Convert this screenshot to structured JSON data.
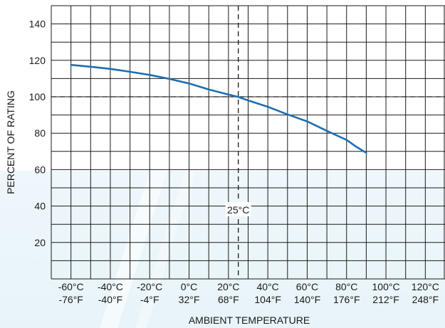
{
  "chart_data": {
    "type": "line",
    "xlabel": "AMBIENT TEMPERATURE",
    "ylabel": "PERCENT OF RATING",
    "xlim": [
      -60,
      120
    ],
    "ylim": [
      0,
      150
    ],
    "x_ticks": [
      {
        "c": -60,
        "c_label": "-60°C",
        "f_label": "-76°F"
      },
      {
        "c": -40,
        "c_label": "-40°C",
        "f_label": "-40°F"
      },
      {
        "c": -20,
        "c_label": "-20°C",
        "f_label": "-4°F"
      },
      {
        "c": 0,
        "c_label": "0°C",
        "f_label": "32°F"
      },
      {
        "c": 20,
        "c_label": "20°C",
        "f_label": "68°F"
      },
      {
        "c": 40,
        "c_label": "40°C",
        "f_label": "104°F"
      },
      {
        "c": 60,
        "c_label": "60°C",
        "f_label": "140°F"
      },
      {
        "c": 80,
        "c_label": "80°C",
        "f_label": "176°F"
      },
      {
        "c": 100,
        "c_label": "100°C",
        "f_label": "212°F"
      },
      {
        "c": 120,
        "c_label": "120°C",
        "f_label": "248°F"
      }
    ],
    "y_ticks": [
      20,
      40,
      60,
      80,
      100,
      120,
      140
    ],
    "reference_x": 25,
    "reference_x_label": "25°C",
    "reference_y": 100,
    "grid": true,
    "series": [
      {
        "color": "#1f6fb2",
        "x": [
          -60,
          -50,
          -40,
          -30,
          -20,
          -10,
          0,
          10,
          20,
          25,
          30,
          40,
          50,
          60,
          70,
          80,
          85,
          90
        ],
        "y": [
          117.5,
          116.5,
          115.3,
          113.7,
          112,
          109.8,
          107.3,
          104,
          101.2,
          99.9,
          98,
          94.5,
          90.3,
          86.5,
          81.3,
          76.3,
          72.5,
          69.2
        ]
      }
    ]
  }
}
